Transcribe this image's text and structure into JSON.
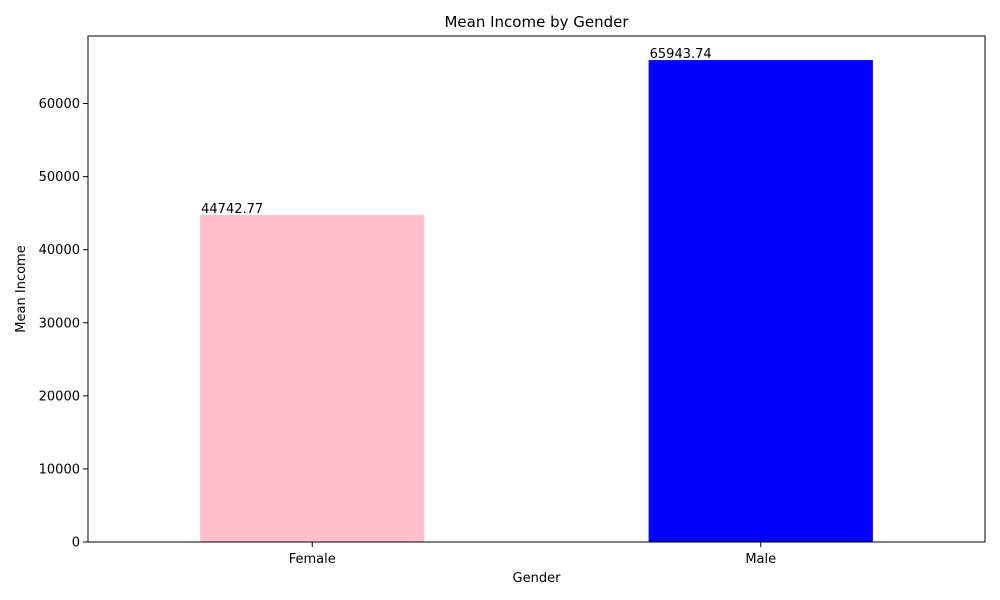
{
  "chart_data": {
    "type": "bar",
    "title": "Mean Income by Gender",
    "xlabel": "Gender",
    "ylabel": "Mean Income",
    "categories": [
      "Female",
      "Male"
    ],
    "values": [
      44742.77,
      65943.74
    ],
    "value_labels": [
      "44742.77",
      "65943.74"
    ],
    "bar_colors": [
      "#ffc0cb",
      "#0000ff"
    ],
    "ylim": [
      0,
      69240.93
    ],
    "yticks": [
      0,
      10000,
      20000,
      30000,
      40000,
      50000,
      60000
    ],
    "ytick_labels": [
      "0",
      "10000",
      "20000",
      "30000",
      "40000",
      "50000",
      "60000"
    ],
    "grid": false,
    "legend": "none"
  }
}
